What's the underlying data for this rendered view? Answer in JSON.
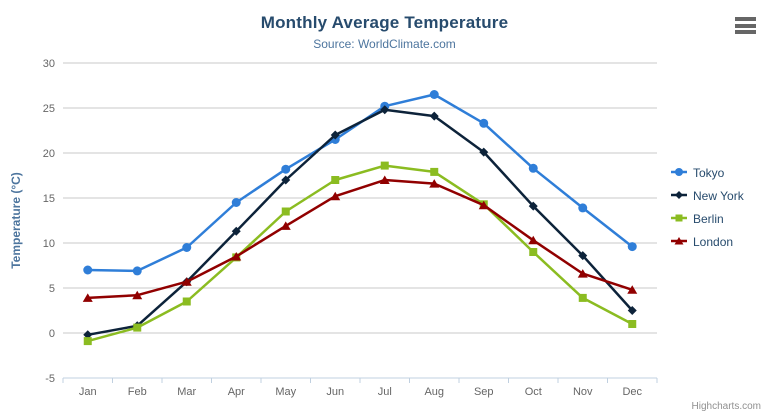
{
  "chart_data": {
    "type": "line",
    "title": "Monthly Average Temperature",
    "subtitle": "Source: WorldClimate.com",
    "xlabel": "",
    "ylabel": "Temperature (°C)",
    "ylim": [
      -5,
      30
    ],
    "ytick_step": 5,
    "grid": true,
    "legend_position": "right",
    "categories": [
      "Jan",
      "Feb",
      "Mar",
      "Apr",
      "May",
      "Jun",
      "Jul",
      "Aug",
      "Sep",
      "Oct",
      "Nov",
      "Dec"
    ],
    "series": [
      {
        "name": "Tokyo",
        "color": "#2f7ed8",
        "marker": "circle",
        "values": [
          7.0,
          6.9,
          9.5,
          14.5,
          18.2,
          21.5,
          25.2,
          26.5,
          23.3,
          18.3,
          13.9,
          9.6
        ]
      },
      {
        "name": "New York",
        "color": "#0d233a",
        "marker": "diamond",
        "values": [
          -0.2,
          0.8,
          5.7,
          11.3,
          17.0,
          22.0,
          24.8,
          24.1,
          20.1,
          14.1,
          8.6,
          2.5
        ]
      },
      {
        "name": "Berlin",
        "color": "#8bbc21",
        "marker": "square",
        "values": [
          -0.9,
          0.6,
          3.5,
          8.4,
          13.5,
          17.0,
          18.6,
          17.9,
          14.3,
          9.0,
          3.9,
          1.0
        ]
      },
      {
        "name": "London",
        "color": "#910000",
        "marker": "triangle",
        "values": [
          3.9,
          4.2,
          5.7,
          8.5,
          11.9,
          15.2,
          17.0,
          16.6,
          14.2,
          10.3,
          6.6,
          4.8
        ]
      }
    ],
    "credit": "Highcharts.com"
  },
  "colors": {
    "title": "#274b6d",
    "subtitle": "#4d759e",
    "axis_label": "#666666",
    "grid": "#c8c8c8",
    "axis_line": "#c0d0e0",
    "menu": "#666666",
    "credit": "#909090"
  },
  "menu": {
    "icon": "hamburger-icon"
  }
}
